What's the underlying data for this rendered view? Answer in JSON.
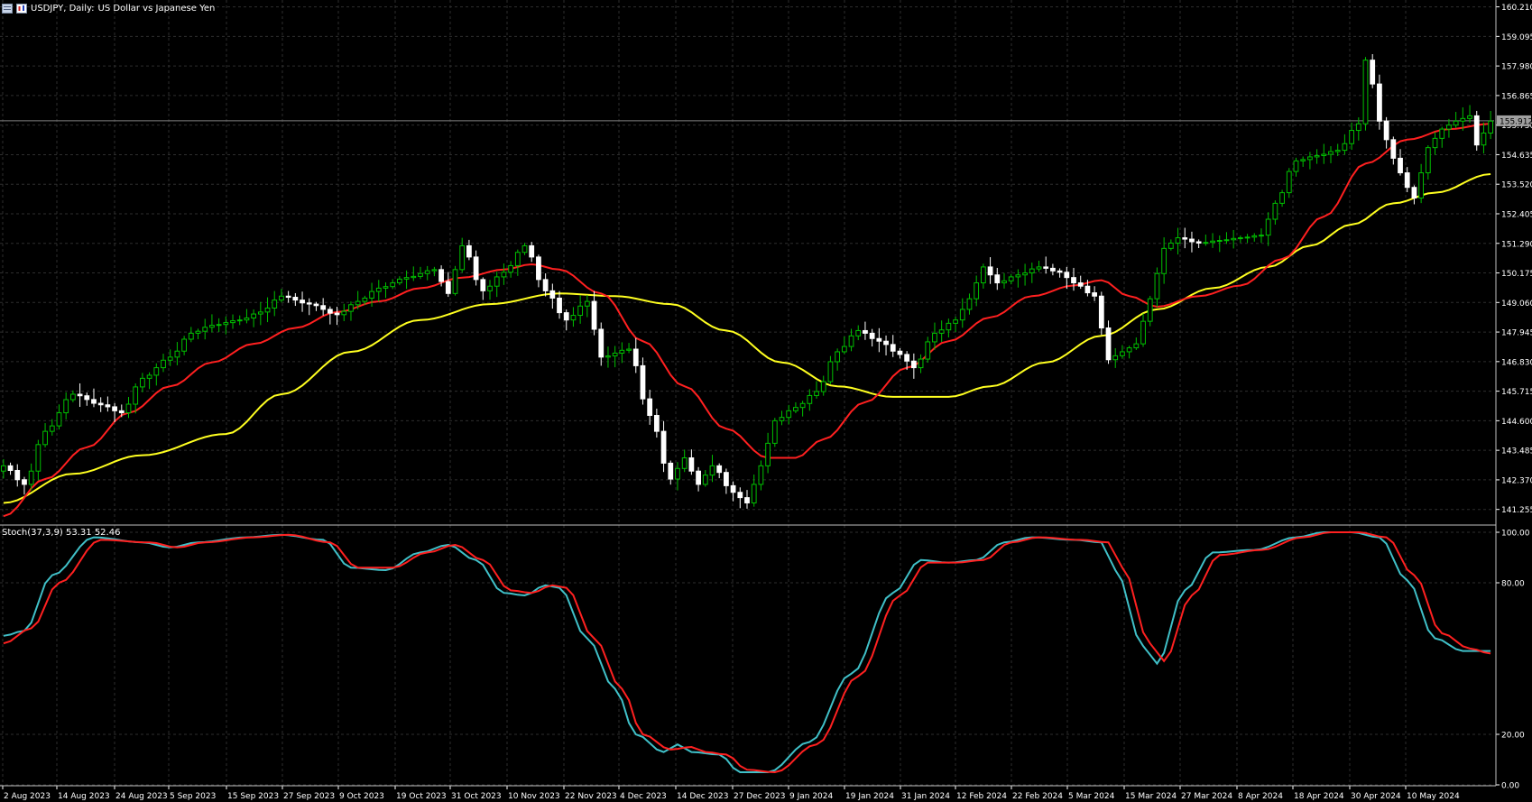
{
  "header": {
    "symbol": "USDJPY, Daily:",
    "description": "US Dollar vs Japanese Yen"
  },
  "indicator": {
    "label": "Stoch(37,3,9) 53.31 52.46"
  },
  "colors": {
    "background": "#000000",
    "grid": "#2e2e2e",
    "bull_candle": "#00c000",
    "bear_candle": "#ffffff",
    "ma_fast": "#ff2020",
    "ma_slow": "#ffff20",
    "stoch_main": "#40c0c8",
    "stoch_signal": "#ff2020",
    "text": "#ffffff"
  },
  "chart_data": [
    {
      "type": "candlestick",
      "title": "USDJPY, Daily:  US Dollar vs Japanese Yen",
      "x_ticks": [
        "2 Aug 2023",
        "14 Aug 2023",
        "24 Aug 2023",
        "5 Sep 2023",
        "15 Sep 2023",
        "27 Sep 2023",
        "9 Oct 2023",
        "19 Oct 2023",
        "31 Oct 2023",
        "10 Nov 2023",
        "22 Nov 2023",
        "4 Dec 2023",
        "14 Dec 2023",
        "27 Dec 2023",
        "9 Jan 2024",
        "19 Jan 2024",
        "31 Jan 2024",
        "12 Feb 2024",
        "22 Feb 2024",
        "5 Mar 2024",
        "15 Mar 2024",
        "27 Mar 2024",
        "8 Apr 2024",
        "18 Apr 2024",
        "30 Apr 2024",
        "10 May 2024"
      ],
      "y_ticks": [
        "160.210",
        "159.095",
        "157.980",
        "156.865",
        "155.750",
        "154.635",
        "153.520",
        "152.405",
        "151.290",
        "150.175",
        "149.060",
        "147.945",
        "146.830",
        "145.715",
        "144.600",
        "143.485",
        "142.370",
        "141.255"
      ],
      "ylim": [
        140.7,
        160.4
      ],
      "current_price": "155.912",
      "anchors": [
        [
          0,
          142.9
        ],
        [
          3,
          142.2
        ],
        [
          6,
          144.2
        ],
        [
          10,
          145.6
        ],
        [
          14,
          145.2
        ],
        [
          17,
          144.9
        ],
        [
          20,
          146.2
        ],
        [
          24,
          147.0
        ],
        [
          27,
          147.9
        ],
        [
          30,
          148.2
        ],
        [
          34,
          148.4
        ],
        [
          37,
          148.7
        ],
        [
          40,
          149.3
        ],
        [
          44,
          149.0
        ],
        [
          48,
          148.6
        ],
        [
          51,
          149.1
        ],
        [
          54,
          149.6
        ],
        [
          58,
          150.0
        ],
        [
          62,
          150.3
        ],
        [
          64,
          149.4
        ],
        [
          66,
          151.2
        ],
        [
          69,
          149.5
        ],
        [
          72,
          150.2
        ],
        [
          75,
          151.2
        ],
        [
          78,
          149.5
        ],
        [
          81,
          148.4
        ],
        [
          84,
          149.1
        ],
        [
          86,
          147.0
        ],
        [
          90,
          147.3
        ],
        [
          93,
          144.8
        ],
        [
          96,
          142.4
        ],
        [
          98,
          143.2
        ],
        [
          100,
          142.2
        ],
        [
          102,
          142.9
        ],
        [
          105,
          141.9
        ],
        [
          107,
          141.5
        ],
        [
          109,
          142.9
        ],
        [
          111,
          144.6
        ],
        [
          114,
          145.1
        ],
        [
          117,
          145.7
        ],
        [
          120,
          147.2
        ],
        [
          123,
          148.0
        ],
        [
          126,
          147.6
        ],
        [
          129,
          147.1
        ],
        [
          131,
          146.6
        ],
        [
          134,
          147.9
        ],
        [
          137,
          148.4
        ],
        [
          139,
          149.2
        ],
        [
          141,
          150.4
        ],
        [
          143,
          149.8
        ],
        [
          146,
          150.1
        ],
        [
          149,
          150.4
        ],
        [
          152,
          150.2
        ],
        [
          154,
          149.8
        ],
        [
          157,
          149.3
        ],
        [
          159,
          146.9
        ],
        [
          161,
          147.2
        ],
        [
          163,
          147.5
        ],
        [
          165,
          149.2
        ],
        [
          167,
          151.1
        ],
        [
          169,
          151.5
        ],
        [
          172,
          151.3
        ],
        [
          175,
          151.4
        ],
        [
          178,
          151.5
        ],
        [
          181,
          151.6
        ],
        [
          183,
          152.8
        ],
        [
          186,
          154.4
        ],
        [
          189,
          154.6
        ],
        [
          192,
          154.8
        ],
        [
          195,
          155.8
        ],
        [
          196,
          158.2
        ],
        [
          197,
          157.3
        ],
        [
          198,
          155.9
        ],
        [
          200,
          154.5
        ],
        [
          202,
          153.4
        ],
        [
          203,
          153.0
        ],
        [
          205,
          154.9
        ],
        [
          207,
          155.6
        ],
        [
          209,
          155.9
        ],
        [
          211,
          156.1
        ],
        [
          212,
          155.0
        ],
        [
          214,
          155.9
        ]
      ],
      "ma_fast_anchors": [
        [
          0,
          141.0
        ],
        [
          6,
          142.4
        ],
        [
          12,
          143.6
        ],
        [
          18,
          144.9
        ],
        [
          24,
          145.9
        ],
        [
          30,
          146.8
        ],
        [
          36,
          147.5
        ],
        [
          42,
          148.1
        ],
        [
          48,
          148.7
        ],
        [
          54,
          149.1
        ],
        [
          60,
          149.6
        ],
        [
          66,
          150.0
        ],
        [
          72,
          150.3
        ],
        [
          76,
          150.5
        ],
        [
          80,
          150.3
        ],
        [
          86,
          149.4
        ],
        [
          92,
          147.6
        ],
        [
          98,
          145.9
        ],
        [
          104,
          144.3
        ],
        [
          110,
          143.2
        ],
        [
          114,
          143.2
        ],
        [
          118,
          143.9
        ],
        [
          124,
          145.3
        ],
        [
          130,
          146.6
        ],
        [
          136,
          147.6
        ],
        [
          142,
          148.5
        ],
        [
          148,
          149.3
        ],
        [
          154,
          149.7
        ],
        [
          158,
          149.9
        ],
        [
          162,
          149.3
        ],
        [
          166,
          148.9
        ],
        [
          172,
          149.3
        ],
        [
          178,
          149.7
        ],
        [
          184,
          150.7
        ],
        [
          190,
          152.3
        ],
        [
          196,
          154.3
        ],
        [
          202,
          155.2
        ],
        [
          208,
          155.6
        ],
        [
          214,
          155.8
        ]
      ],
      "ma_slow_anchors": [
        [
          0,
          141.5
        ],
        [
          10,
          142.6
        ],
        [
          20,
          143.3
        ],
        [
          32,
          144.1
        ],
        [
          40,
          145.6
        ],
        [
          50,
          147.2
        ],
        [
          60,
          148.4
        ],
        [
          70,
          149.0
        ],
        [
          80,
          149.4
        ],
        [
          88,
          149.3
        ],
        [
          96,
          149.0
        ],
        [
          104,
          148.0
        ],
        [
          112,
          146.8
        ],
        [
          120,
          145.9
        ],
        [
          128,
          145.5
        ],
        [
          136,
          145.5
        ],
        [
          142,
          145.9
        ],
        [
          150,
          146.8
        ],
        [
          158,
          147.8
        ],
        [
          166,
          148.8
        ],
        [
          174,
          149.6
        ],
        [
          182,
          150.4
        ],
        [
          188,
          151.2
        ],
        [
          194,
          152.0
        ],
        [
          200,
          152.8
        ],
        [
          206,
          153.2
        ],
        [
          214,
          153.9
        ]
      ]
    },
    {
      "type": "line",
      "title": "Stoch(37,3,9) 53.31 52.46",
      "y_ticks": [
        "100.00",
        "80.00",
        "20.00",
        "0.00"
      ],
      "ylim": [
        0,
        100
      ],
      "series": [
        {
          "name": "",
          "anchors": [
            [
              0,
              59
            ],
            [
              3,
              61
            ],
            [
              7,
              83
            ],
            [
              13,
              98
            ],
            [
              20,
              96
            ],
            [
              24,
              94
            ],
            [
              28,
              96
            ],
            [
              35,
              98
            ],
            [
              40,
              99
            ],
            [
              46,
              97
            ],
            [
              50,
              86
            ],
            [
              55,
              85
            ],
            [
              60,
              92
            ],
            [
              64,
              95
            ],
            [
              68,
              89
            ],
            [
              72,
              76
            ],
            [
              75,
              75
            ],
            [
              78,
              79
            ],
            [
              80,
              78
            ],
            [
              84,
              58
            ],
            [
              88,
              38
            ],
            [
              91,
              20
            ],
            [
              95,
              13
            ],
            [
              97,
              16
            ],
            [
              99,
              13
            ],
            [
              103,
              12
            ],
            [
              106,
              5
            ],
            [
              110,
              5
            ],
            [
              116,
              17
            ],
            [
              122,
              44
            ],
            [
              128,
              76
            ],
            [
              132,
              89
            ],
            [
              136,
              88
            ],
            [
              140,
              89
            ],
            [
              144,
              96
            ],
            [
              148,
              98
            ],
            [
              154,
              97
            ],
            [
              158,
              96
            ],
            [
              160,
              85
            ],
            [
              164,
              55
            ],
            [
              166,
              48
            ],
            [
              170,
              77
            ],
            [
              174,
              92
            ],
            [
              180,
              93
            ],
            [
              186,
              98
            ],
            [
              190,
              100
            ],
            [
              194,
              100
            ],
            [
              198,
              98
            ],
            [
              202,
              81
            ],
            [
              206,
              58
            ],
            [
              210,
              53
            ],
            [
              214,
              53
            ]
          ]
        },
        {
          "name": "",
          "anchors": [
            [
              0,
              56
            ],
            [
              4,
              62
            ],
            [
              8,
              80
            ],
            [
              14,
              97
            ],
            [
              21,
              96
            ],
            [
              25,
              94
            ],
            [
              29,
              96
            ],
            [
              36,
              98
            ],
            [
              41,
              99
            ],
            [
              47,
              96
            ],
            [
              51,
              86
            ],
            [
              56,
              86
            ],
            [
              61,
              92
            ],
            [
              65,
              95
            ],
            [
              69,
              89
            ],
            [
              73,
              77
            ],
            [
              76,
              76
            ],
            [
              79,
              79
            ],
            [
              81,
              78
            ],
            [
              85,
              58
            ],
            [
              89,
              38
            ],
            [
              92,
              20
            ],
            [
              96,
              14
            ],
            [
              99,
              15
            ],
            [
              101,
              13
            ],
            [
              104,
              12
            ],
            [
              107,
              6
            ],
            [
              111,
              5
            ],
            [
              117,
              16
            ],
            [
              123,
              43
            ],
            [
              129,
              75
            ],
            [
              133,
              88
            ],
            [
              137,
              88
            ],
            [
              141,
              89
            ],
            [
              145,
              96
            ],
            [
              149,
              98
            ],
            [
              155,
              97
            ],
            [
              159,
              96
            ],
            [
              161,
              86
            ],
            [
              165,
              56
            ],
            [
              167,
              49
            ],
            [
              171,
              75
            ],
            [
              175,
              91
            ],
            [
              181,
              93
            ],
            [
              187,
              98
            ],
            [
              191,
              100
            ],
            [
              195,
              100
            ],
            [
              199,
              98
            ],
            [
              203,
              83
            ],
            [
              207,
              60
            ],
            [
              211,
              54
            ],
            [
              214,
              52
            ]
          ]
        }
      ]
    }
  ]
}
